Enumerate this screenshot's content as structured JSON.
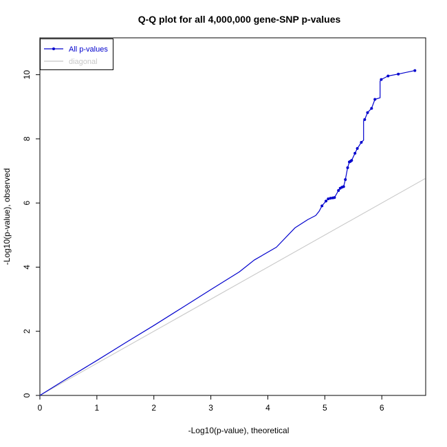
{
  "chart_data": {
    "type": "line",
    "title": "Q-Q plot for all 4,000,000 gene-SNP p-values",
    "xlabel": "-Log10(p-value), theoretical",
    "ylabel": "-Log10(p-value), observed",
    "x_ticks": [
      0,
      1,
      2,
      3,
      4,
      5,
      6
    ],
    "y_ticks": [
      0,
      2,
      4,
      6,
      8,
      10
    ],
    "xlim": [
      0,
      6.77
    ],
    "ylim": [
      0,
      11.15
    ],
    "grid": false,
    "legend_position": "top-left",
    "series": [
      {
        "name": "All p-values",
        "color": "#0000CD",
        "marker": "point",
        "line": [
          [
            0,
            0
          ],
          [
            0.5,
            0.55
          ],
          [
            1,
            1.09
          ],
          [
            1.5,
            1.64
          ],
          [
            2,
            2.18
          ],
          [
            2.5,
            2.74
          ],
          [
            3,
            3.3
          ],
          [
            3.5,
            3.85
          ],
          [
            3.76,
            4.22
          ],
          [
            4.15,
            4.62
          ],
          [
            4.48,
            5.23
          ],
          [
            4.7,
            5.48
          ],
          [
            4.84,
            5.61
          ],
          [
            4.9,
            5.74
          ],
          [
            4.95,
            5.91
          ],
          [
            5.02,
            6.06
          ],
          [
            5.06,
            6.12
          ],
          [
            5.1,
            6.15
          ],
          [
            5.17,
            6.17
          ],
          [
            5.24,
            6.39
          ],
          [
            5.27,
            6.46
          ],
          [
            5.33,
            6.51
          ],
          [
            5.36,
            6.73
          ],
          [
            5.4,
            7.1
          ],
          [
            5.43,
            7.28
          ],
          [
            5.47,
            7.33
          ],
          [
            5.53,
            7.55
          ],
          [
            5.57,
            7.7
          ],
          [
            5.64,
            7.89
          ],
          [
            5.68,
            7.96
          ],
          [
            5.68,
            8.56
          ],
          [
            5.7,
            8.6
          ],
          [
            5.75,
            8.82
          ],
          [
            5.82,
            8.95
          ],
          [
            5.88,
            9.23
          ],
          [
            5.97,
            9.28
          ],
          [
            5.97,
            9.8
          ],
          [
            5.99,
            9.85
          ],
          [
            6.11,
            9.96
          ],
          [
            6.29,
            10.02
          ],
          [
            6.58,
            10.13
          ]
        ],
        "markers": [
          [
            4.95,
            5.91
          ],
          [
            5.02,
            6.06
          ],
          [
            5.06,
            6.13
          ],
          [
            5.1,
            6.15
          ],
          [
            5.14,
            6.16
          ],
          [
            5.17,
            6.17
          ],
          [
            5.24,
            6.39
          ],
          [
            5.27,
            6.46
          ],
          [
            5.3,
            6.49
          ],
          [
            5.33,
            6.51
          ],
          [
            5.36,
            6.73
          ],
          [
            5.4,
            7.1
          ],
          [
            5.43,
            7.28
          ],
          [
            5.45,
            7.3
          ],
          [
            5.47,
            7.33
          ],
          [
            5.53,
            7.55
          ],
          [
            5.57,
            7.7
          ],
          [
            5.64,
            7.89
          ],
          [
            5.7,
            8.6
          ],
          [
            5.75,
            8.82
          ],
          [
            5.82,
            8.95
          ],
          [
            5.88,
            9.23
          ],
          [
            5.99,
            9.85
          ],
          [
            6.11,
            9.96
          ],
          [
            6.29,
            10.02
          ],
          [
            6.58,
            10.13
          ]
        ]
      },
      {
        "name": "diagonal",
        "color": "#C8C8C8",
        "marker": "none",
        "line": [
          [
            0,
            0
          ],
          [
            6.76,
            6.76
          ]
        ]
      }
    ]
  }
}
